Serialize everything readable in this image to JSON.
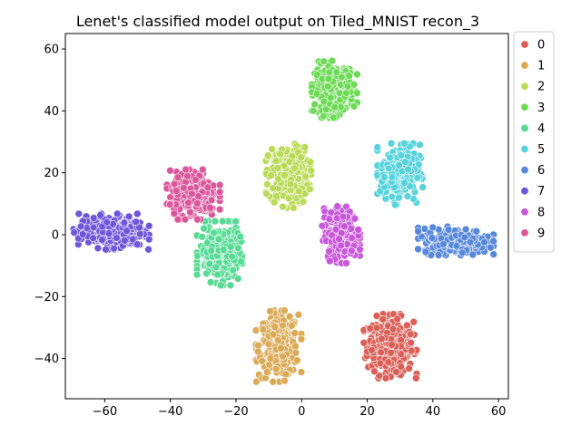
{
  "chart_data": {
    "type": "scatter",
    "title": "Lenet's classified model output on Tiled_MNIST recon_3",
    "xlabel": "",
    "ylabel": "",
    "xlim": [
      -72,
      63
    ],
    "ylim": [
      -53,
      65
    ],
    "xticks": [
      -60,
      -40,
      -20,
      0,
      20,
      40,
      60
    ],
    "yticks": [
      -40,
      -20,
      0,
      20,
      40,
      60
    ],
    "xtick_labels": [
      "−60",
      "−40",
      "−20",
      "0",
      "20",
      "40",
      "60"
    ],
    "ytick_labels": [
      "−40",
      "−20",
      "0",
      "20",
      "40",
      "60"
    ],
    "grid": false,
    "legend_position": "outside-top-right",
    "series": [
      {
        "name": "0",
        "color": "#db5f57",
        "center": [
          27,
          -36
        ],
        "spread": [
          3.5,
          4.5
        ],
        "count": 320
      },
      {
        "name": "1",
        "color": "#dbaa57",
        "center": [
          -7,
          -36
        ],
        "spread": [
          3,
          5
        ],
        "count": 320
      },
      {
        "name": "2",
        "color": "#b9db57",
        "center": [
          -4,
          19
        ],
        "spread": [
          3,
          4.5
        ],
        "count": 300
      },
      {
        "name": "3",
        "color": "#6edb57",
        "center": [
          10,
          47
        ],
        "spread": [
          3,
          4
        ],
        "count": 260
      },
      {
        "name": "4",
        "color": "#57db94",
        "center": [
          -25,
          -6
        ],
        "spread": [
          3,
          4.5
        ],
        "count": 280
      },
      {
        "name": "5",
        "color": "#57d3db",
        "center": [
          30,
          20
        ],
        "spread": [
          3,
          4.5
        ],
        "count": 230
      },
      {
        "name": "6",
        "color": "#5788db",
        "center": [
          47,
          -2
        ],
        "spread": [
          5,
          2
        ],
        "count": 280
      },
      {
        "name": "7",
        "color": "#6f57db",
        "center": [
          -58,
          1
        ],
        "spread": [
          5,
          2.5
        ],
        "count": 320
      },
      {
        "name": "8",
        "color": "#c957db",
        "center": [
          12,
          0
        ],
        "spread": [
          2.5,
          4
        ],
        "count": 260
      },
      {
        "name": "9",
        "color": "#db579b",
        "center": [
          -33,
          13
        ],
        "spread": [
          3.5,
          3.5
        ],
        "count": 280
      }
    ]
  }
}
